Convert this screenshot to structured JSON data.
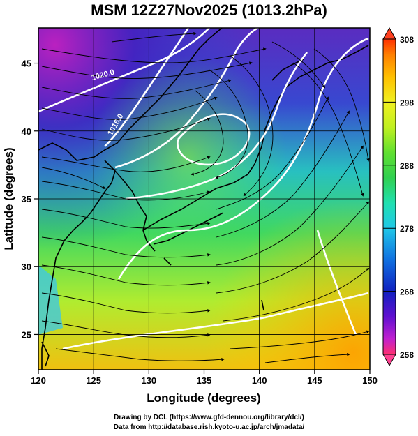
{
  "title": "MSM 12Z27Nov2025 (1013.2hPa)",
  "map": {
    "x_label": "Longitude (degrees)",
    "y_label": "Latitude  (degrees)",
    "x_ticks": [
      "120",
      "125",
      "130",
      "135",
      "140",
      "145",
      "150"
    ],
    "y_ticks": [
      "25",
      "30",
      "35",
      "40",
      "45"
    ],
    "lon_range": [
      120,
      150
    ],
    "lat_range": [
      22.4,
      47.6
    ],
    "contour_labels": [
      "1020.0",
      "1016.0"
    ],
    "colorbar": {
      "ticks": [
        "308",
        "298",
        "288",
        "278",
        "268",
        "258"
      ],
      "range": [
        258,
        308
      ],
      "colors": [
        "#ff3070",
        "#c020d0",
        "#6010d0",
        "#1020c0",
        "#1070e0",
        "#20c8e8",
        "#20e0b0",
        "#30d050",
        "#60e030",
        "#c0f020",
        "#f0f020",
        "#ffc000",
        "#ff8000",
        "#ff3000"
      ]
    }
  },
  "credits": {
    "line1": "Drawing by DCL (https://www.gfd-dennou.org/library/dcl/)",
    "line2": "Data from http://database.rish.kyoto-u.ac.jp/arch/jmadata/"
  }
}
